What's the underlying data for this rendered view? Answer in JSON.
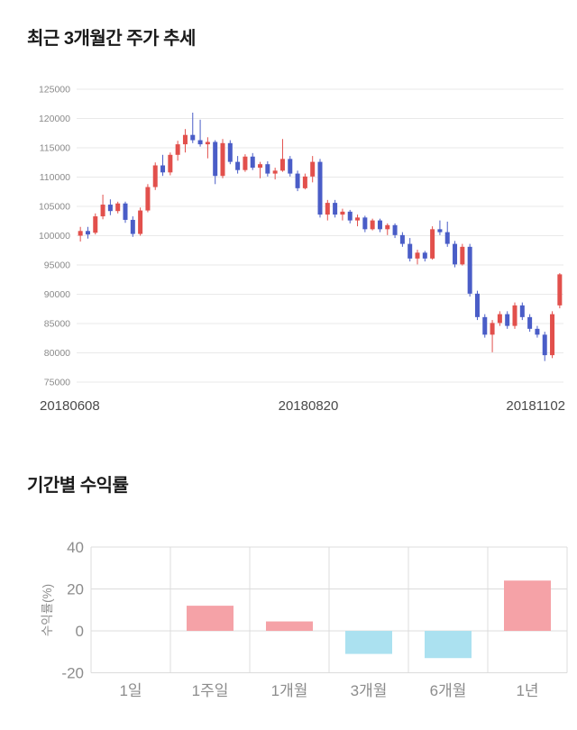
{
  "page": {
    "background": "#ffffff"
  },
  "chart_data": [
    {
      "type": "candlestick",
      "title": "최근 3개월간 주가 추세",
      "x_axis_labels": [
        "20180608",
        "20180820",
        "20181102"
      ],
      "yticks": [
        125000,
        120000,
        115000,
        110000,
        105000,
        100000,
        95000,
        90000,
        85000,
        80000,
        75000
      ],
      "ylim": [
        75000,
        125000
      ],
      "grid": true,
      "up_color": "#e2504c",
      "down_color": "#4a5dc7",
      "axis_text_color": "#8a8a8a",
      "date_text_color": "#4a4a4a",
      "candles_ohlc": [
        [
          100000,
          101500,
          99000,
          100800
        ],
        [
          100800,
          101500,
          99500,
          100200
        ],
        [
          100500,
          103800,
          100200,
          103300
        ],
        [
          103300,
          107000,
          102800,
          105300
        ],
        [
          105300,
          106200,
          103500,
          104200
        ],
        [
          104200,
          105800,
          103800,
          105500
        ],
        [
          105500,
          105800,
          102200,
          102700
        ],
        [
          102700,
          103300,
          99800,
          100300
        ],
        [
          100300,
          104800,
          100000,
          104300
        ],
        [
          104300,
          108800,
          104000,
          108300
        ],
        [
          108300,
          112500,
          107800,
          112000
        ],
        [
          112000,
          113800,
          110200,
          110800
        ],
        [
          110800,
          114200,
          110300,
          113800
        ],
        [
          113800,
          116200,
          112800,
          115600
        ],
        [
          115600,
          118200,
          114200,
          117200
        ],
        [
          117200,
          121000,
          115800,
          116300
        ],
        [
          116300,
          119800,
          115200,
          115600
        ],
        [
          115600,
          116800,
          113200,
          116000
        ],
        [
          116000,
          116300,
          108800,
          110200
        ],
        [
          110200,
          116500,
          109800,
          115800
        ],
        [
          115800,
          116300,
          112200,
          112600
        ],
        [
          112600,
          113600,
          110600,
          111200
        ],
        [
          111200,
          113900,
          110900,
          113500
        ],
        [
          113500,
          114100,
          111200,
          111600
        ],
        [
          111600,
          112600,
          109800,
          112200
        ],
        [
          112200,
          112700,
          110100,
          110600
        ],
        [
          110600,
          111600,
          109600,
          111100
        ],
        [
          111100,
          116500,
          110900,
          113100
        ],
        [
          113100,
          113600,
          110100,
          110600
        ],
        [
          110600,
          111100,
          107600,
          108100
        ],
        [
          108100,
          110600,
          107900,
          110100
        ],
        [
          110100,
          113600,
          109100,
          112600
        ],
        [
          112600,
          113100,
          103100,
          103600
        ],
        [
          103600,
          106100,
          102600,
          105600
        ],
        [
          105600,
          106100,
          103100,
          103600
        ],
        [
          103600,
          104600,
          102600,
          104100
        ],
        [
          104100,
          104400,
          102100,
          102600
        ],
        [
          102600,
          103600,
          101600,
          103100
        ],
        [
          103100,
          103400,
          100600,
          101100
        ],
        [
          101100,
          102900,
          100900,
          102600
        ],
        [
          102600,
          102900,
          100600,
          101100
        ],
        [
          101100,
          102100,
          100100,
          101800
        ],
        [
          101800,
          102100,
          99600,
          100100
        ],
        [
          100100,
          100600,
          98100,
          98600
        ],
        [
          98600,
          99600,
          95600,
          96100
        ],
        [
          96100,
          97600,
          95100,
          97100
        ],
        [
          97100,
          97400,
          95600,
          96100
        ],
        [
          96100,
          101600,
          95900,
          101100
        ],
        [
          101100,
          102600,
          100100,
          100600
        ],
        [
          100600,
          102400,
          98100,
          98600
        ],
        [
          98600,
          99100,
          94600,
          95100
        ],
        [
          95100,
          98600,
          94900,
          98100
        ],
        [
          98100,
          98600,
          89600,
          90100
        ],
        [
          90100,
          90600,
          85600,
          86100
        ],
        [
          86100,
          86600,
          82600,
          83100
        ],
        [
          83100,
          85600,
          80100,
          85100
        ],
        [
          85100,
          87100,
          84600,
          86600
        ],
        [
          86600,
          87100,
          84100,
          84600
        ],
        [
          84600,
          88600,
          84100,
          88100
        ],
        [
          88100,
          88600,
          85600,
          86100
        ],
        [
          86100,
          86600,
          83600,
          84100
        ],
        [
          84100,
          84600,
          82600,
          83100
        ],
        [
          83100,
          83600,
          78600,
          79600
        ],
        [
          79600,
          87100,
          79100,
          86600
        ],
        [
          88100,
          93600,
          87600,
          93400
        ]
      ]
    },
    {
      "type": "bar",
      "title": "기간별 수익률",
      "ylabel": "수익률(%)",
      "categories": [
        "1일",
        "1주일",
        "1개월",
        "3개월",
        "6개월",
        "1년"
      ],
      "values": [
        0,
        12,
        4.5,
        -11,
        -13,
        24
      ],
      "yticks": [
        40,
        20,
        0,
        -20
      ],
      "ylim": [
        -20,
        40
      ],
      "grid": true,
      "positive_color": "#f5a2a7",
      "negative_color": "#abe1f0",
      "axis_text_color": "#8c8c8c"
    }
  ]
}
